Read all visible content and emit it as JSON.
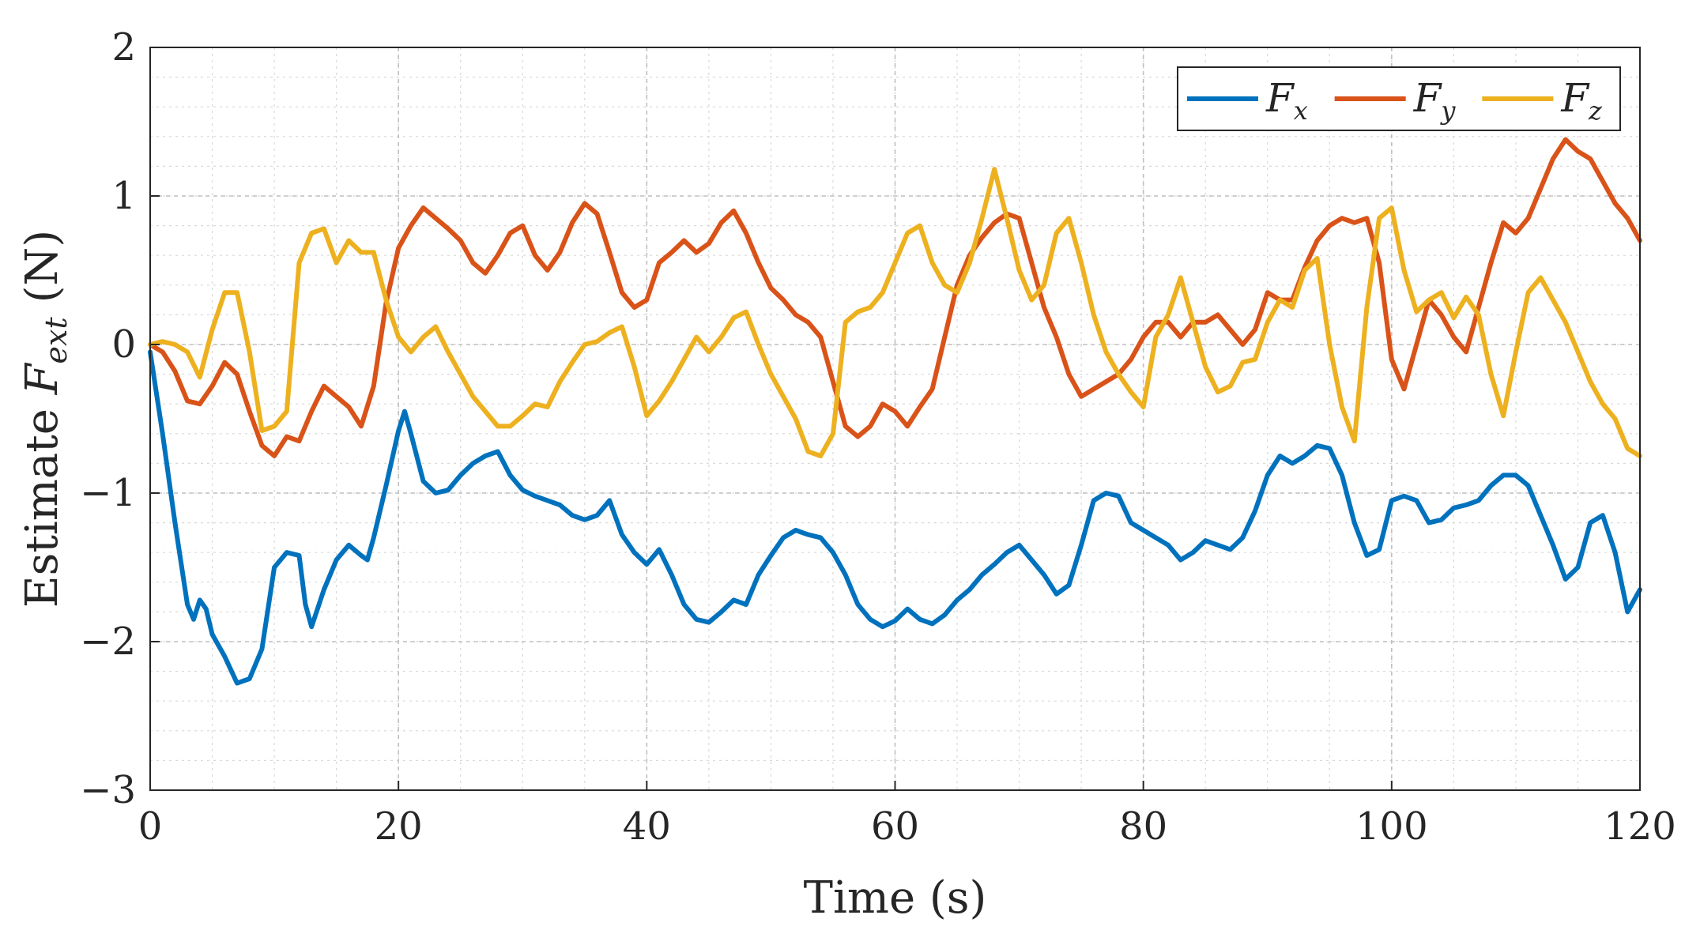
{
  "chart_data": {
    "type": "line",
    "xlabel": "Time (s)",
    "ylabel": {
      "prefix": "Estimate ",
      "symbol": "F",
      "subscript": "ext",
      "suffix": " (N)"
    },
    "xlim": [
      0,
      120
    ],
    "ylim": [
      -3,
      2
    ],
    "xticks": [
      0,
      20,
      40,
      60,
      80,
      100,
      120
    ],
    "yticks": [
      -3,
      -2,
      -1,
      0,
      1,
      2
    ],
    "xtick_labels": [
      "0",
      "20",
      "40",
      "60",
      "80",
      "100",
      "120"
    ],
    "ytick_labels": [
      "−3",
      "−2",
      "−1",
      "0",
      "1",
      "2"
    ],
    "grid": true,
    "minor_grid": true,
    "legend_position": "top-right",
    "series": [
      {
        "name": "F_x",
        "symbol": "F",
        "subscript": "x",
        "color": "#0072BD",
        "x": [
          0,
          1,
          2,
          3,
          3.5,
          4,
          4.5,
          5,
          6,
          7,
          8,
          9,
          10,
          11,
          12,
          12.5,
          13,
          14,
          15,
          16,
          17,
          17.5,
          18,
          19,
          20,
          20.5,
          21,
          22,
          23,
          24,
          25,
          26,
          27,
          28,
          29,
          30,
          31,
          32,
          33,
          34,
          35,
          36,
          37,
          38,
          39,
          40,
          41,
          42,
          43,
          44,
          45,
          46,
          47,
          48,
          49,
          50,
          51,
          52,
          53,
          54,
          55,
          56,
          57,
          58,
          59,
          60,
          61,
          62,
          63,
          64,
          65,
          66,
          67,
          68,
          69,
          70,
          71,
          72,
          73,
          74,
          75,
          76,
          77,
          78,
          79,
          80,
          81,
          82,
          83,
          84,
          85,
          86,
          87,
          88,
          89,
          90,
          91,
          92,
          93,
          94,
          95,
          96,
          97,
          98,
          99,
          100,
          101,
          102,
          103,
          104,
          105,
          106,
          107,
          108,
          109,
          110,
          111,
          112,
          113,
          114,
          115,
          116,
          117,
          118,
          119,
          120
        ],
        "y": [
          -0.05,
          -0.6,
          -1.2,
          -1.75,
          -1.85,
          -1.72,
          -1.78,
          -1.95,
          -2.1,
          -2.28,
          -2.25,
          -2.05,
          -1.5,
          -1.4,
          -1.42,
          -1.75,
          -1.9,
          -1.65,
          -1.45,
          -1.35,
          -1.42,
          -1.45,
          -1.3,
          -0.95,
          -0.58,
          -0.45,
          -0.6,
          -0.92,
          -1.0,
          -0.98,
          -0.88,
          -0.8,
          -0.75,
          -0.72,
          -0.88,
          -0.98,
          -1.02,
          -1.05,
          -1.08,
          -1.15,
          -1.18,
          -1.15,
          -1.05,
          -1.28,
          -1.4,
          -1.48,
          -1.38,
          -1.55,
          -1.75,
          -1.85,
          -1.87,
          -1.8,
          -1.72,
          -1.75,
          -1.55,
          -1.42,
          -1.3,
          -1.25,
          -1.28,
          -1.3,
          -1.4,
          -1.55,
          -1.75,
          -1.85,
          -1.9,
          -1.86,
          -1.78,
          -1.85,
          -1.88,
          -1.82,
          -1.72,
          -1.65,
          -1.55,
          -1.48,
          -1.4,
          -1.35,
          -1.45,
          -1.55,
          -1.68,
          -1.62,
          -1.35,
          -1.05,
          -1.0,
          -1.02,
          -1.2,
          -1.25,
          -1.3,
          -1.35,
          -1.45,
          -1.4,
          -1.32,
          -1.35,
          -1.38,
          -1.3,
          -1.12,
          -0.88,
          -0.75,
          -0.8,
          -0.75,
          -0.68,
          -0.7,
          -0.88,
          -1.2,
          -1.42,
          -1.38,
          -1.05,
          -1.02,
          -1.05,
          -1.2,
          -1.18,
          -1.1,
          -1.08,
          -1.05,
          -0.95,
          -0.88,
          -0.88,
          -0.95,
          -1.15,
          -1.35,
          -1.58,
          -1.5,
          -1.2,
          -1.15,
          -1.4,
          -1.8,
          -1.65
        ]
      },
      {
        "name": "F_y",
        "symbol": "F",
        "subscript": "y",
        "color": "#D95319",
        "x": [
          0,
          1,
          2,
          3,
          4,
          5,
          6,
          7,
          8,
          9,
          10,
          11,
          12,
          13,
          14,
          15,
          16,
          17,
          18,
          19,
          20,
          21,
          22,
          23,
          24,
          25,
          26,
          27,
          28,
          29,
          30,
          31,
          32,
          33,
          34,
          35,
          36,
          37,
          38,
          39,
          40,
          41,
          42,
          43,
          44,
          45,
          46,
          47,
          48,
          49,
          50,
          51,
          52,
          53,
          54,
          55,
          56,
          57,
          58,
          59,
          60,
          61,
          62,
          63,
          64,
          65,
          66,
          67,
          68,
          69,
          70,
          71,
          72,
          73,
          74,
          75,
          76,
          77,
          78,
          79,
          80,
          81,
          82,
          83,
          84,
          85,
          86,
          87,
          88,
          89,
          90,
          91,
          92,
          93,
          94,
          95,
          96,
          97,
          98,
          99,
          100,
          101,
          102,
          103,
          104,
          105,
          106,
          107,
          108,
          109,
          110,
          111,
          112,
          113,
          114,
          115,
          116,
          117,
          118,
          119,
          120
        ],
        "y": [
          0,
          -0.05,
          -0.18,
          -0.38,
          -0.4,
          -0.28,
          -0.12,
          -0.2,
          -0.45,
          -0.68,
          -0.75,
          -0.62,
          -0.65,
          -0.45,
          -0.28,
          -0.35,
          -0.42,
          -0.55,
          -0.28,
          0.28,
          0.65,
          0.8,
          0.92,
          0.85,
          0.78,
          0.7,
          0.55,
          0.48,
          0.6,
          0.75,
          0.8,
          0.6,
          0.5,
          0.62,
          0.82,
          0.95,
          0.88,
          0.62,
          0.35,
          0.25,
          0.3,
          0.55,
          0.62,
          0.7,
          0.62,
          0.68,
          0.82,
          0.9,
          0.75,
          0.55,
          0.38,
          0.3,
          0.2,
          0.15,
          0.05,
          -0.25,
          -0.55,
          -0.62,
          -0.55,
          -0.4,
          -0.45,
          -0.55,
          -0.42,
          -0.3,
          0.05,
          0.4,
          0.6,
          0.72,
          0.82,
          0.88,
          0.85,
          0.55,
          0.25,
          0.05,
          -0.2,
          -0.35,
          -0.3,
          -0.25,
          -0.2,
          -0.1,
          0.05,
          0.15,
          0.15,
          0.05,
          0.15,
          0.15,
          0.2,
          0.1,
          0.0,
          0.1,
          0.35,
          0.3,
          0.3,
          0.52,
          0.7,
          0.8,
          0.85,
          0.82,
          0.85,
          0.55,
          -0.1,
          -0.3,
          0.0,
          0.3,
          0.2,
          0.05,
          -0.05,
          0.25,
          0.55,
          0.82,
          0.75,
          0.85,
          1.05,
          1.25,
          1.38,
          1.3,
          1.25,
          1.1,
          0.95,
          0.85,
          0.7
        ]
      },
      {
        "name": "F_z",
        "symbol": "F",
        "subscript": "z",
        "color": "#EDB120",
        "x": [
          0,
          1,
          2,
          3,
          4,
          5,
          6,
          7,
          8,
          9,
          10,
          11,
          12,
          13,
          14,
          15,
          16,
          17,
          18,
          19,
          20,
          21,
          22,
          23,
          24,
          25,
          26,
          27,
          28,
          29,
          30,
          31,
          32,
          33,
          34,
          35,
          36,
          37,
          38,
          39,
          40,
          41,
          42,
          43,
          44,
          45,
          46,
          47,
          48,
          49,
          50,
          51,
          52,
          53,
          54,
          55,
          56,
          57,
          58,
          59,
          60,
          61,
          62,
          63,
          64,
          65,
          66,
          67,
          68,
          69,
          70,
          71,
          72,
          73,
          74,
          75,
          76,
          77,
          78,
          79,
          80,
          81,
          82,
          83,
          84,
          85,
          86,
          87,
          88,
          89,
          90,
          91,
          92,
          93,
          94,
          95,
          96,
          97,
          98,
          99,
          100,
          101,
          102,
          103,
          104,
          105,
          106,
          107,
          108,
          109,
          110,
          111,
          112,
          113,
          114,
          115,
          116,
          117,
          118,
          119,
          120
        ],
        "y": [
          0,
          0.02,
          0.0,
          -0.05,
          -0.22,
          0.1,
          0.35,
          0.35,
          -0.05,
          -0.58,
          -0.55,
          -0.45,
          0.55,
          0.75,
          0.78,
          0.55,
          0.7,
          0.62,
          0.62,
          0.3,
          0.05,
          -0.05,
          0.05,
          0.12,
          -0.05,
          -0.2,
          -0.35,
          -0.45,
          -0.55,
          -0.55,
          -0.48,
          -0.4,
          -0.42,
          -0.25,
          -0.12,
          0.0,
          0.02,
          0.08,
          0.12,
          -0.15,
          -0.48,
          -0.38,
          -0.25,
          -0.1,
          0.05,
          -0.05,
          0.05,
          0.18,
          0.22,
          0.0,
          -0.2,
          -0.35,
          -0.5,
          -0.72,
          -0.75,
          -0.6,
          0.15,
          0.22,
          0.25,
          0.35,
          0.55,
          0.75,
          0.8,
          0.55,
          0.4,
          0.35,
          0.55,
          0.85,
          1.18,
          0.85,
          0.5,
          0.3,
          0.4,
          0.75,
          0.85,
          0.55,
          0.2,
          -0.05,
          -0.2,
          -0.32,
          -0.42,
          0.05,
          0.2,
          0.45,
          0.15,
          -0.15,
          -0.32,
          -0.28,
          -0.12,
          -0.1,
          0.15,
          0.3,
          0.25,
          0.5,
          0.58,
          0.0,
          -0.42,
          -0.65,
          0.25,
          0.85,
          0.92,
          0.5,
          0.22,
          0.3,
          0.35,
          0.18,
          0.32,
          0.2,
          -0.2,
          -0.48,
          -0.05,
          0.35,
          0.45,
          0.3,
          0.15,
          -0.05,
          -0.25,
          -0.4,
          -0.5,
          -0.7,
          -0.75
        ]
      }
    ]
  }
}
